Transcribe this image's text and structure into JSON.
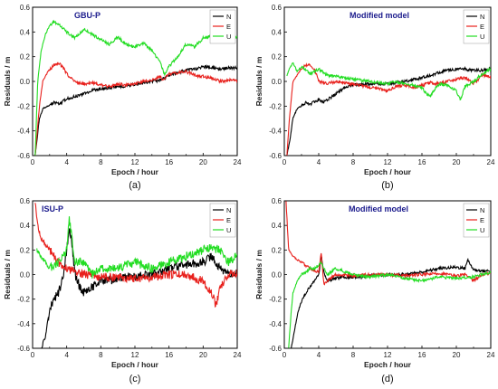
{
  "chart_data": [
    {
      "type": "line",
      "panel_label": "(a)",
      "title": "GBU-P",
      "xlabel": "Epoch / hour",
      "ylabel": "Residuals / m",
      "xlim": [
        0,
        24
      ],
      "ylim": [
        -0.6,
        0.6
      ],
      "xticks": [
        0,
        4,
        8,
        12,
        16,
        20,
        24
      ],
      "yticks": [
        -0.6,
        -0.4,
        -0.2,
        0.0,
        0.2,
        0.4,
        0.6
      ],
      "ytick_labels": [
        "-0.6",
        "-0.4",
        "-0.2",
        "0.0",
        "0.2",
        "0.4",
        "0.6"
      ],
      "grid": false,
      "legend_position": "top-right",
      "noise": 0.012,
      "series": [
        {
          "name": "N",
          "color": "#000000",
          "x": [
            0.3,
            0.8,
            1.2,
            1.8,
            2.5,
            3.2,
            4,
            5,
            6,
            7,
            8,
            9,
            10,
            11,
            12,
            13,
            14,
            15,
            16,
            17,
            18,
            19,
            20,
            21,
            22,
            23,
            24
          ],
          "y": [
            -0.6,
            -0.3,
            -0.22,
            -0.2,
            -0.17,
            -0.18,
            -0.14,
            -0.12,
            -0.1,
            -0.07,
            -0.06,
            -0.05,
            -0.04,
            -0.04,
            -0.02,
            -0.01,
            0.0,
            0.01,
            0.05,
            0.07,
            0.09,
            0.1,
            0.12,
            0.11,
            0.1,
            0.11,
            0.11
          ]
        },
        {
          "name": "E",
          "color": "#e8201c",
          "x": [
            0.3,
            0.8,
            1.2,
            1.8,
            2.5,
            3.0,
            3.5,
            4,
            5,
            6,
            7,
            8,
            9,
            10,
            11,
            12,
            13,
            14,
            15,
            15.3,
            16,
            17,
            18,
            19,
            20,
            21,
            22,
            23,
            24
          ],
          "y": [
            -0.6,
            -0.2,
            0.0,
            0.08,
            0.13,
            0.15,
            0.12,
            0.06,
            0.0,
            -0.02,
            -0.01,
            -0.03,
            -0.04,
            -0.02,
            -0.03,
            -0.02,
            0.0,
            0.01,
            0.04,
            0.01,
            0.06,
            0.07,
            0.08,
            0.05,
            0.04,
            0.03,
            0.0,
            0.01,
            0.01
          ]
        },
        {
          "name": "U",
          "color": "#22dd22",
          "x": [
            0.3,
            0.6,
            1.0,
            1.5,
            2.0,
            2.5,
            3.0,
            4,
            5,
            6,
            7,
            8,
            9,
            10,
            11,
            12,
            13,
            14,
            15,
            15.5,
            16,
            17,
            18,
            19,
            20,
            21,
            22,
            23,
            24
          ],
          "y": [
            -0.6,
            0.0,
            0.25,
            0.38,
            0.45,
            0.48,
            0.47,
            0.4,
            0.35,
            0.42,
            0.38,
            0.34,
            0.3,
            0.36,
            0.3,
            0.28,
            0.31,
            0.25,
            0.15,
            0.05,
            0.12,
            0.2,
            0.3,
            0.28,
            0.35,
            0.37,
            0.36,
            0.33,
            0.36
          ]
        }
      ]
    },
    {
      "type": "line",
      "panel_label": "(b)",
      "title": "Modified model",
      "xlabel": "Epoch / hour",
      "ylabel": "Residuals / m",
      "xlim": [
        0,
        24
      ],
      "ylim": [
        -0.6,
        0.6
      ],
      "xticks": [
        0,
        4,
        8,
        12,
        16,
        20,
        24
      ],
      "yticks": [
        -0.6,
        -0.4,
        -0.2,
        0.0,
        0.2,
        0.4,
        0.6
      ],
      "ytick_labels": [
        "-0.6",
        "-0.4",
        "-0.2",
        "0.0",
        "0.2",
        "0.4",
        "0.6"
      ],
      "grid": false,
      "legend_position": "top-right",
      "noise": 0.012,
      "series": [
        {
          "name": "N",
          "color": "#000000",
          "x": [
            0.3,
            0.7,
            1.0,
            1.5,
            2.0,
            2.5,
            3.0,
            3.5,
            4,
            4.5,
            5,
            6,
            7,
            8,
            10,
            12,
            14,
            16,
            17,
            18,
            19,
            20,
            21,
            22,
            23,
            24
          ],
          "y": [
            -0.6,
            -0.45,
            -0.3,
            -0.22,
            -0.2,
            -0.17,
            -0.19,
            -0.16,
            -0.15,
            -0.17,
            -0.15,
            -0.1,
            -0.05,
            -0.03,
            -0.02,
            -0.02,
            0.0,
            0.03,
            0.05,
            0.07,
            0.09,
            0.1,
            0.1,
            0.09,
            0.09,
            0.1
          ]
        },
        {
          "name": "E",
          "color": "#e8201c",
          "x": [
            0.3,
            0.6,
            1.0,
            1.5,
            2.0,
            2.5,
            3.0,
            3.5,
            4,
            5,
            6,
            8,
            10,
            11,
            12,
            13,
            14,
            15,
            16,
            17,
            18,
            19,
            20,
            21,
            22,
            23,
            24
          ],
          "y": [
            -0.6,
            -0.3,
            0.0,
            0.05,
            0.1,
            0.13,
            0.13,
            0.1,
            0.0,
            -0.02,
            0.0,
            -0.02,
            -0.05,
            -0.06,
            -0.08,
            -0.04,
            -0.03,
            -0.05,
            -0.03,
            -0.01,
            -0.02,
            0.0,
            0.02,
            0.03,
            -0.02,
            0.05,
            0.04
          ]
        },
        {
          "name": "U",
          "color": "#22dd22",
          "x": [
            0.3,
            0.6,
            1.0,
            1.5,
            2,
            3,
            4,
            5,
            6,
            8,
            10,
            12,
            13,
            14,
            15,
            16,
            16.5,
            17,
            17.5,
            18,
            19,
            20,
            20.5,
            21,
            22,
            23,
            24
          ],
          "y": [
            0.05,
            0.1,
            0.15,
            0.08,
            0.12,
            0.06,
            0.1,
            0.05,
            0.04,
            0.02,
            0.0,
            -0.02,
            0.0,
            -0.02,
            -0.03,
            -0.05,
            -0.1,
            -0.12,
            -0.06,
            -0.02,
            -0.03,
            -0.08,
            -0.15,
            -0.04,
            0.0,
            0.06,
            0.1
          ]
        }
      ]
    },
    {
      "type": "line",
      "panel_label": "(c)",
      "title": "ISU-P",
      "xlabel": "Epoch / hour",
      "ylabel": "Residuals / m",
      "xlim": [
        0,
        24
      ],
      "ylim": [
        -0.6,
        0.6
      ],
      "xticks": [
        0,
        4,
        8,
        12,
        16,
        20,
        24
      ],
      "yticks": [
        -0.6,
        -0.4,
        -0.2,
        0.0,
        0.2,
        0.4,
        0.6
      ],
      "ytick_labels": [
        "-0.6",
        "-0.4",
        "-0.2",
        "0.0",
        "0.2",
        "0.4",
        "0.6"
      ],
      "grid": false,
      "legend_position": "top-right",
      "noise": 0.035,
      "series": [
        {
          "name": "N",
          "color": "#000000",
          "x": [
            1.0,
            1.5,
            2.0,
            2.5,
            3.0,
            3.5,
            4.0,
            4.3,
            4.6,
            5.0,
            5.5,
            6,
            7,
            8,
            9,
            10,
            11,
            12,
            14,
            16,
            18,
            20,
            21,
            22,
            23,
            24
          ],
          "y": [
            -0.6,
            -0.5,
            -0.3,
            -0.2,
            -0.15,
            -0.05,
            0.2,
            0.38,
            0.25,
            0.0,
            -0.1,
            -0.15,
            -0.1,
            -0.05,
            -0.05,
            -0.03,
            -0.02,
            -0.02,
            0.0,
            0.05,
            0.08,
            0.1,
            0.15,
            0.05,
            0.0,
            0.02
          ]
        },
        {
          "name": "E",
          "color": "#e8201c",
          "x": [
            0.3,
            0.6,
            1.0,
            1.5,
            2.0,
            2.5,
            3.0,
            4,
            5,
            6,
            8,
            10,
            12,
            14,
            16,
            18,
            20,
            21,
            21.5,
            22,
            23,
            24
          ],
          "y": [
            0.6,
            0.4,
            0.3,
            0.25,
            0.2,
            0.15,
            0.1,
            0.05,
            0.02,
            0.0,
            -0.02,
            -0.02,
            -0.03,
            -0.02,
            0.0,
            0.0,
            -0.05,
            -0.15,
            -0.25,
            -0.1,
            0.0,
            0.02
          ]
        },
        {
          "name": "U",
          "color": "#22dd22",
          "x": [
            0.5,
            1.0,
            1.5,
            2,
            3,
            4,
            4.3,
            4.6,
            5,
            6,
            7,
            8,
            10,
            12,
            14,
            16,
            18,
            20,
            21,
            22,
            23,
            24
          ],
          "y": [
            0.2,
            0.15,
            0.1,
            0.05,
            0.1,
            0.2,
            0.45,
            0.3,
            0.1,
            0.1,
            0.0,
            0.05,
            0.05,
            0.1,
            0.05,
            0.1,
            0.15,
            0.2,
            0.22,
            0.2,
            0.1,
            0.15
          ]
        }
      ]
    },
    {
      "type": "line",
      "panel_label": "(d)",
      "title": "Modified model",
      "xlabel": "Epoch / hour",
      "ylabel": "Residuals / m",
      "xlim": [
        0,
        24
      ],
      "ylim": [
        -0.6,
        0.6
      ],
      "xticks": [
        0,
        4,
        8,
        12,
        16,
        20,
        24
      ],
      "yticks": [
        -0.6,
        -0.4,
        -0.2,
        0.0,
        0.2,
        0.4,
        0.6
      ],
      "ytick_labels": [
        "-0.6",
        "-0.4",
        "-0.2",
        "0.0",
        "0.2",
        "0.4",
        "0.6"
      ],
      "grid": false,
      "legend_position": "top-right",
      "noise": 0.012,
      "series": [
        {
          "name": "N",
          "color": "#000000",
          "x": [
            0.8,
            1.2,
            1.6,
            2,
            2.5,
            3,
            3.5,
            4.0,
            4.3,
            4.6,
            5,
            6,
            7,
            8,
            10,
            12,
            14,
            16,
            18,
            20,
            21,
            21.3,
            22,
            23,
            24
          ],
          "y": [
            -0.6,
            -0.45,
            -0.3,
            -0.22,
            -0.15,
            -0.1,
            -0.05,
            0.0,
            0.15,
            0.02,
            -0.05,
            -0.03,
            -0.02,
            -0.02,
            -0.01,
            0.0,
            0.0,
            0.02,
            0.05,
            0.06,
            0.05,
            0.12,
            0.04,
            0.03,
            0.03
          ]
        },
        {
          "name": "E",
          "color": "#e8201c",
          "x": [
            0.2,
            0.5,
            1.0,
            1.5,
            2.0,
            3.0,
            4.0,
            4.3,
            4.6,
            5,
            6,
            8,
            10,
            12,
            14,
            16,
            18,
            20,
            21,
            22,
            23,
            24
          ],
          "y": [
            0.6,
            0.2,
            0.15,
            0.12,
            0.1,
            0.05,
            0.02,
            0.18,
            -0.08,
            -0.05,
            0.0,
            -0.01,
            0.0,
            0.0,
            -0.01,
            0.0,
            0.01,
            -0.01,
            0.0,
            -0.05,
            0.0,
            0.01
          ]
        },
        {
          "name": "U",
          "color": "#22dd22",
          "x": [
            0.5,
            0.8,
            1.0,
            1.5,
            2,
            2.5,
            3,
            3.5,
            4,
            4.3,
            4.6,
            5,
            6,
            8,
            10,
            12,
            14,
            16,
            18,
            20,
            22,
            23,
            24
          ],
          "y": [
            -0.6,
            -0.3,
            -0.15,
            -0.05,
            0.0,
            0.02,
            0.05,
            0.05,
            0.08,
            0.1,
            0.05,
            0.0,
            0.05,
            0.0,
            -0.02,
            0.0,
            -0.03,
            -0.05,
            -0.02,
            -0.03,
            -0.02,
            0.0,
            0.02
          ]
        }
      ]
    }
  ]
}
